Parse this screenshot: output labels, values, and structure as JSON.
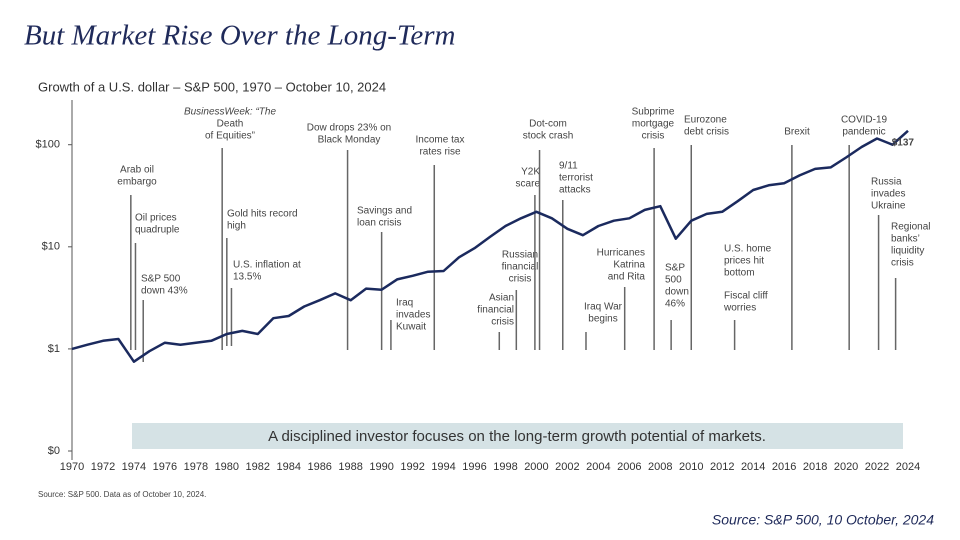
{
  "chart_data": {
    "type": "line",
    "title": "But Market Rise Over the Long-Term",
    "subtitle": "Growth of a U.S. dollar – S&P 500, 1970 – October 10, 2024",
    "x": [
      1970,
      1971,
      1972,
      1973,
      1974,
      1975,
      1976,
      1977,
      1978,
      1979,
      1980,
      1981,
      1982,
      1983,
      1984,
      1985,
      1986,
      1987,
      1988,
      1989,
      1990,
      1991,
      1992,
      1993,
      1994,
      1995,
      1996,
      1997,
      1998,
      1999,
      2000,
      2001,
      2002,
      2003,
      2004,
      2005,
      2006,
      2007,
      2008,
      2009,
      2010,
      2011,
      2012,
      2013,
      2014,
      2015,
      2016,
      2017,
      2018,
      2019,
      2020,
      2021,
      2022,
      2023,
      2024
    ],
    "values": [
      1.0,
      1.1,
      1.2,
      1.25,
      0.75,
      0.95,
      1.15,
      1.1,
      1.15,
      1.2,
      1.4,
      1.5,
      1.4,
      2.0,
      2.1,
      2.6,
      3.0,
      3.5,
      3.0,
      3.9,
      3.8,
      4.8,
      5.2,
      5.7,
      5.8,
      7.9,
      9.7,
      12.5,
      16,
      19,
      22,
      19,
      15,
      13,
      16,
      18,
      19,
      23,
      25,
      12,
      18,
      21,
      22,
      28,
      36,
      40,
      42,
      50,
      58,
      60,
      75,
      95,
      115,
      100,
      137
    ],
    "value_labels": [
      null,
      null,
      null,
      null,
      null,
      null,
      null,
      null,
      null,
      null,
      null,
      null,
      null,
      null,
      null,
      null,
      null,
      null,
      null,
      null,
      null,
      null,
      null,
      null,
      null,
      null,
      null,
      null,
      null,
      null,
      null,
      null,
      null,
      null,
      null,
      null,
      null,
      null,
      null,
      null,
      null,
      null,
      null,
      null,
      null,
      null,
      null,
      null,
      null,
      null,
      null,
      null,
      null,
      null,
      "$137"
    ],
    "color": "#1b2a5e",
    "log_scale": true,
    "xlim": [
      1970,
      2024
    ],
    "xticks": [
      1970,
      1972,
      1974,
      1976,
      1978,
      1980,
      1982,
      1984,
      1986,
      1988,
      1990,
      1992,
      1994,
      1996,
      1998,
      2000,
      2002,
      2004,
      2006,
      2008,
      2010,
      2012,
      2014,
      2016,
      2018,
      2020,
      2022,
      2024
    ],
    "ylim": [
      0.1,
      300
    ],
    "yticks": [
      {
        "value": 0.1,
        "label": "$0"
      },
      {
        "value": 1,
        "label": "$1"
      },
      {
        "value": 10,
        "label": "$10"
      },
      {
        "value": 100,
        "label": "$100"
      }
    ],
    "annotations": [
      {
        "x": 1973.8,
        "text": [
          "Arab oil",
          "embargo"
        ]
      },
      {
        "x": 1974.1,
        "text": [
          "Oil prices",
          "quadruple"
        ]
      },
      {
        "x": 1974.6,
        "text": [
          "S&P 500",
          "down 43%"
        ]
      },
      {
        "x": 1979.7,
        "text": [
          "BusinessWeek: “The",
          "Death",
          "of Equities”"
        ]
      },
      {
        "x": 1980.0,
        "text": [
          "Gold hits record",
          "high"
        ]
      },
      {
        "x": 1980.3,
        "text": [
          "U.S. inflation at",
          "13.5%"
        ]
      },
      {
        "x": 1987.8,
        "text": [
          "Dow drops 23% on",
          "Black Monday"
        ]
      },
      {
        "x": 1990.0,
        "text": [
          "Savings and",
          "loan crisis"
        ]
      },
      {
        "x": 1990.6,
        "text": [
          "Iraq",
          "invades",
          "Kuwait"
        ]
      },
      {
        "x": 1993.4,
        "text": [
          "Income tax",
          "rates rise"
        ]
      },
      {
        "x": 1997.6,
        "text": [
          "Asian",
          "financial",
          "crisis"
        ]
      },
      {
        "x": 1998.7,
        "text": [
          "Russian",
          "financial",
          "crisis"
        ]
      },
      {
        "x": 1999.9,
        "text": [
          "Y2K",
          "scare"
        ]
      },
      {
        "x": 2000.2,
        "text": [
          "Dot-com",
          "stock crash"
        ]
      },
      {
        "x": 2001.7,
        "text": [
          "9/11",
          "terrorist",
          "attacks"
        ]
      },
      {
        "x": 2003.2,
        "text": [
          "Iraq War",
          "begins"
        ]
      },
      {
        "x": 2005.7,
        "text": [
          "Hurricanes",
          "Katrina",
          "and Rita"
        ]
      },
      {
        "x": 2007.6,
        "text": [
          "Subprime",
          "mortgage",
          "crisis"
        ]
      },
      {
        "x": 2008.7,
        "text": [
          "S&P",
          "500",
          "down",
          "46%"
        ]
      },
      {
        "x": 2010.0,
        "text": [
          "Eurozone",
          "debt crisis"
        ]
      },
      {
        "text": [
          "U.S. home",
          "prices hit",
          "bottom"
        ]
      },
      {
        "x": 2012.8,
        "text": [
          "Fiscal cliff",
          "worries"
        ]
      },
      {
        "x": 2016.5,
        "text": [
          "Brexit"
        ]
      },
      {
        "x": 2020.2,
        "text": [
          "COVID-19",
          "pandemic"
        ]
      },
      {
        "x": 2022.1,
        "text": [
          "Russia",
          "invades",
          "Ukraine"
        ]
      },
      {
        "x": 2023.2,
        "text": [
          "Regional",
          "banks’",
          "liquidity",
          "crisis"
        ]
      }
    ],
    "banner": "A disciplined investor focuses on the long-term growth potential of markets.",
    "footnote": "Source: S&P 500. Data as of October 10, 2024.",
    "source": "Source: S&P 500, 10 October, 2024"
  }
}
